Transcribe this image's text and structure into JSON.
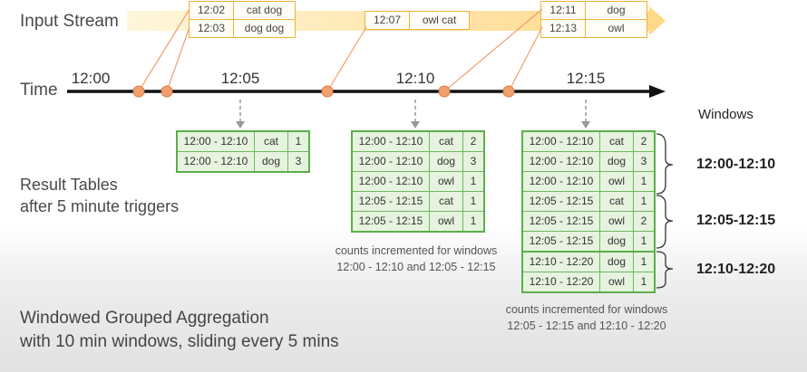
{
  "labels": {
    "input_stream": "Input Stream",
    "time": "Time",
    "windows": "Windows",
    "result_tables_line1": "Result Tables",
    "result_tables_line2": "after 5 minute triggers",
    "caption_line1": "Windowed Grouped Aggregation",
    "caption_line2": "with 10 min windows, sliding every 5 mins"
  },
  "timeline": {
    "ticks": [
      "12:00",
      "12:05",
      "12:10",
      "12:15"
    ]
  },
  "events": [
    [
      {
        "time": "12:02",
        "words": "cat dog"
      },
      {
        "time": "12:03",
        "words": "dog dog"
      }
    ],
    [
      {
        "time": "12:07",
        "words": "owl cat"
      }
    ],
    [
      {
        "time": "12:11",
        "words": "dog"
      },
      {
        "time": "12:13",
        "words": "owl"
      }
    ]
  ],
  "result_tables": [
    {
      "rows": [
        {
          "window": "12:00 - 12:10",
          "word": "cat",
          "count": "1"
        },
        {
          "window": "12:00 - 12:10",
          "word": "dog",
          "count": "3"
        }
      ]
    },
    {
      "rows": [
        {
          "window": "12:00 - 12:10",
          "word": "cat",
          "count": "2"
        },
        {
          "window": "12:00 - 12:10",
          "word": "dog",
          "count": "3"
        },
        {
          "window": "12:00 - 12:10",
          "word": "owl",
          "count": "1"
        },
        {
          "window": "12:05 - 12:15",
          "word": "cat",
          "count": "1"
        },
        {
          "window": "12:05 - 12:15",
          "word": "owl",
          "count": "1"
        }
      ],
      "note_line1": "counts incremented for windows",
      "note_line2": "12:00 - 12:10 and 12:05 - 12:15"
    },
    {
      "rows": [
        {
          "window": "12:00 - 12:10",
          "word": "cat",
          "count": "2"
        },
        {
          "window": "12:00 - 12:10",
          "word": "dog",
          "count": "3"
        },
        {
          "window": "12:00 - 12:10",
          "word": "owl",
          "count": "1"
        },
        {
          "window": "12:05 - 12:15",
          "word": "cat",
          "count": "1"
        },
        {
          "window": "12:05 - 12:15",
          "word": "owl",
          "count": "2"
        },
        {
          "window": "12:05 - 12:15",
          "word": "dog",
          "count": "1"
        },
        {
          "window": "12:10 - 12:20",
          "word": "dog",
          "count": "1"
        },
        {
          "window": "12:10 - 12:20",
          "word": "owl",
          "count": "1"
        }
      ],
      "note_line1": "counts incremented for windows",
      "note_line2": "12:05 - 12:15 and 12:10 - 12:20"
    }
  ],
  "window_labels": [
    "12:00-12:10",
    "12:05-12:15",
    "12:10-12:20"
  ],
  "colors": {
    "event_border": "#f2b233",
    "result_border": "#5cae4a",
    "result_fill": "#e6f3df",
    "event_dot": "#f0a06e"
  }
}
